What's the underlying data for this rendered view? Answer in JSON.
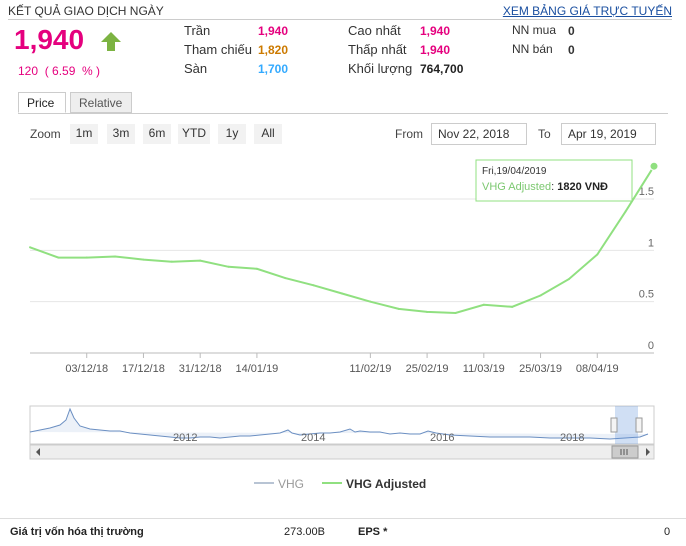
{
  "header": {
    "title": "KẾT QUẢ GIAO DỊCH NGÀY",
    "link": "XEM BẢNG GIÁ TRỰC TUYẾN"
  },
  "quote": {
    "price": "1,940",
    "change": "120  ( 6.59  % )",
    "fields": [
      {
        "label": "Trần",
        "value": "1,940",
        "color": "#e5007e"
      },
      {
        "label": "Tham chiếu",
        "value": "1,820",
        "color": "#cc7a00"
      },
      {
        "label": "Sàn",
        "value": "1,700",
        "color": "#33aaff"
      },
      {
        "label": "Cao nhất",
        "value": "1,940",
        "color": "#e5007e"
      },
      {
        "label": "Thấp nhất",
        "value": "1,940",
        "color": "#e5007e"
      },
      {
        "label": "Khối lượng",
        "value": "764,700",
        "color": "#222"
      },
      {
        "label": "NN mua",
        "value": "0",
        "color": "#222"
      },
      {
        "label": "NN bán",
        "value": "0",
        "color": "#222"
      }
    ]
  },
  "tabs": [
    "Price",
    "Relative"
  ],
  "zoom": {
    "label": "Zoom",
    "buttons": [
      "1m",
      "3m",
      "6m",
      "YTD",
      "1y",
      "All"
    ]
  },
  "range": {
    "from_label": "From",
    "from_value": "Nov 22, 2018",
    "to_label": "To",
    "to_value": "Apr 19, 2019"
  },
  "tooltip": {
    "date": "Fri,19/04/2019",
    "series": "VHG Adjusted",
    "value": "1820 VNĐ"
  },
  "legend": [
    "VHG",
    "VHG Adjusted"
  ],
  "navigator_years": [
    "2012",
    "2014",
    "2016",
    "2018"
  ],
  "footer": {
    "label1": "Giá trị vốn hóa thị trường",
    "value1": "273.00B",
    "label2": "EPS *",
    "value2": "0"
  },
  "colors": {
    "line": "#90e080",
    "grid": "#e6e6e6",
    "accent": "#e5007e"
  },
  "chart_data": {
    "type": "line",
    "series": [
      {
        "name": "VHG Adjusted",
        "x": [
          "22/11/18",
          "29/11/18",
          "03/12/18",
          "10/12/18",
          "17/12/18",
          "24/12/18",
          "31/12/18",
          "07/01/19",
          "14/01/19",
          "21/01/19",
          "28/01/19",
          "04/02/19",
          "11/02/19",
          "18/02/19",
          "25/02/19",
          "04/03/19",
          "11/03/19",
          "18/03/19",
          "25/03/19",
          "01/04/19",
          "08/04/19",
          "15/04/19",
          "19/04/19"
        ],
        "values": [
          1.03,
          0.93,
          0.93,
          0.94,
          0.91,
          0.89,
          0.9,
          0.84,
          0.82,
          0.73,
          0.66,
          0.58,
          0.5,
          0.43,
          0.4,
          0.39,
          0.47,
          0.45,
          0.56,
          0.72,
          0.96,
          1.38,
          1.82
        ]
      }
    ],
    "x_ticks": [
      "03/12/18",
      "17/12/18",
      "31/12/18",
      "14/01/19",
      "11/02/19",
      "25/02/19",
      "11/03/19",
      "25/03/19",
      "08/04/19"
    ],
    "y_ticks": [
      "0",
      "0.5",
      "1",
      "1.5"
    ],
    "ylim": [
      0,
      1.9
    ],
    "grid": true,
    "legend_position": "bottom"
  }
}
